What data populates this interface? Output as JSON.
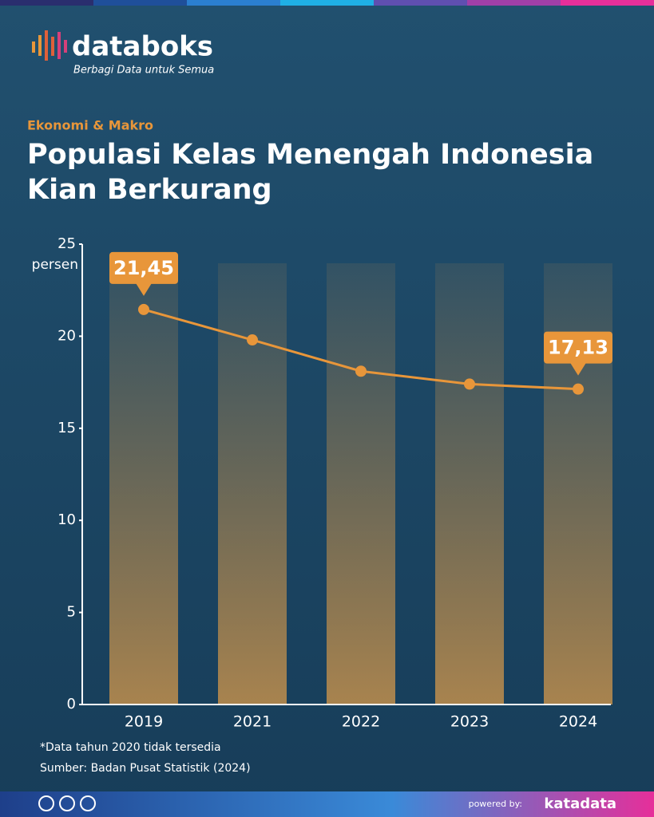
{
  "brand": {
    "name": "databoks",
    "tagline": "Berbagi Data untuk Semua"
  },
  "chart_data": {
    "type": "line",
    "category": "Ekonomi & Makro",
    "title": "Populasi Kelas Menengah Indonesia Kian Berkurang",
    "ylabel": "persen",
    "categories": [
      "2019",
      "2021",
      "2022",
      "2023",
      "2024"
    ],
    "values": [
      21.45,
      19.8,
      18.1,
      17.4,
      17.13
    ],
    "value_labels": [
      "21,45",
      null,
      null,
      null,
      "17,13"
    ],
    "color": "#e8963a",
    "ylim": [
      0,
      25
    ],
    "yticks": [
      0,
      5,
      10,
      15,
      20,
      25
    ],
    "grid": false,
    "notes": [
      "*Data tahun 2020 tidak tersedia",
      "Sumber: Badan Pusat Statistik (2024)"
    ]
  },
  "footer": {
    "powered": "powered by:",
    "company": "katadata"
  }
}
